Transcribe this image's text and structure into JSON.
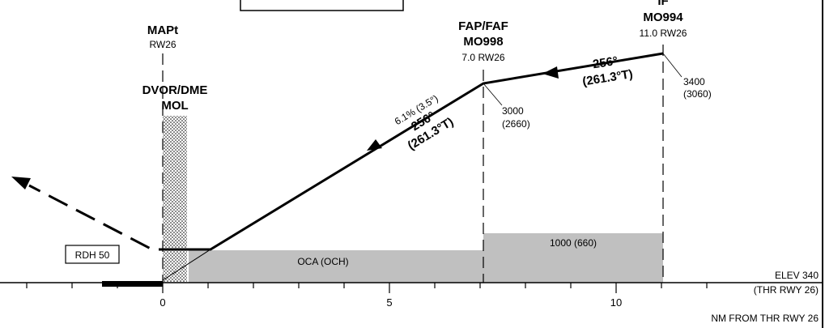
{
  "fixes": {
    "mapt": {
      "name": "MAPt",
      "dist": "RW26"
    },
    "navaid": {
      "type": "DVOR/DME",
      "ident": "MOL"
    },
    "faf": {
      "name": "FAP/FAF",
      "ident": "MO998",
      "dist": "7.0 RW26",
      "alt": "3000",
      "height": "(2660)"
    },
    "ip": {
      "name": "IF",
      "ident": "MO994",
      "dist": "11.0 RW26",
      "alt": "3400",
      "height": "(3060)"
    }
  },
  "segments": {
    "intermediate": {
      "track_mag": "256°",
      "track_true": "(261.3°T)"
    },
    "final": {
      "gradient": "6.1% (3.5°)",
      "track_mag": "256°",
      "track_true": "(261.3°T)"
    }
  },
  "rdh": "RDH 50",
  "oca_label": "OCA (OCH)",
  "intermediate_minimum": "1000 (660)",
  "elev": "ELEV 340",
  "thr_ref": "(THR RWY 26)",
  "axis_label": "NM FROM THR RWY 26",
  "axis_ticks": [
    "0",
    "5",
    "10"
  ],
  "colors": {
    "fill_area": "#c0c0c0",
    "line": "#000000"
  }
}
